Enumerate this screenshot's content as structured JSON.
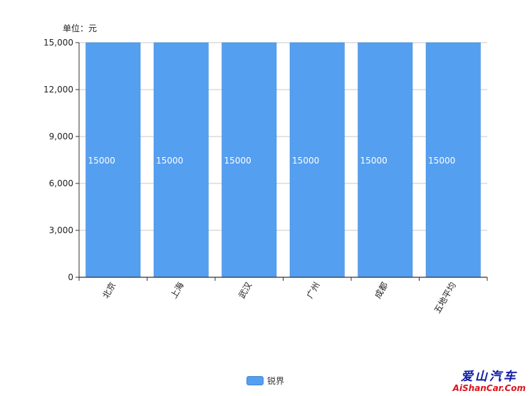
{
  "unit_label": "单位：元",
  "legend": {
    "label": "锐界",
    "color": "#559ff0"
  },
  "watermark": {
    "cn": "爱山汽车",
    "en": "AiShanCar.Com"
  },
  "chart_data": {
    "type": "bar",
    "categories": [
      "北京",
      "上海",
      "武汉",
      "广州",
      "成都",
      "五地平均"
    ],
    "series": [
      {
        "name": "锐界",
        "values": [
          15000,
          15000,
          15000,
          15000,
          15000,
          15000
        ]
      }
    ],
    "data_labels": [
      "15000",
      "15000",
      "15000",
      "15000",
      "15000",
      "15000"
    ],
    "yticks": [
      0,
      3000,
      6000,
      9000,
      12000,
      15000
    ],
    "ytick_labels": [
      "0",
      "3,000",
      "6,000",
      "9,000",
      "12,000",
      "15,000"
    ],
    "ylim": [
      0,
      15000
    ],
    "grid": true,
    "legend_position": "bottom-center"
  }
}
